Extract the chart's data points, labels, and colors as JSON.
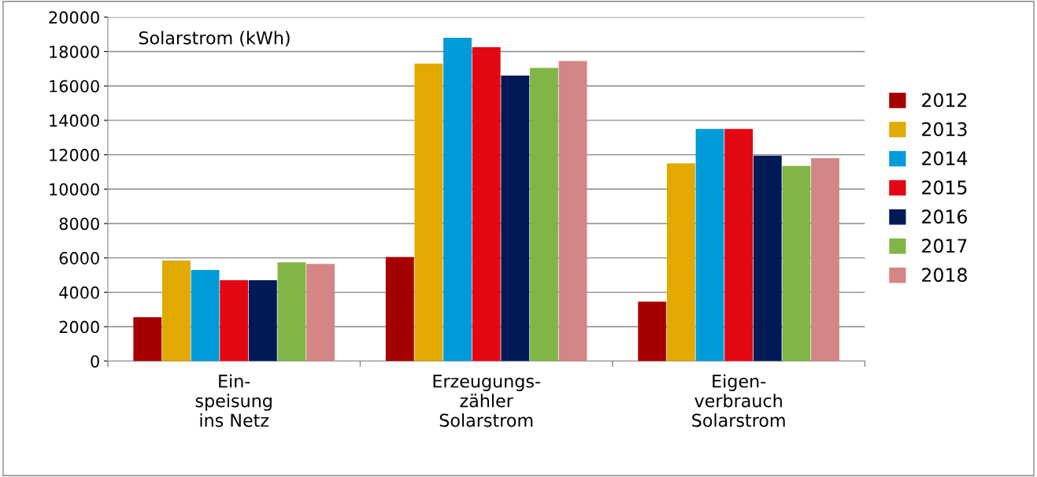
{
  "chart_data": {
    "type": "bar",
    "annotations": [
      "Solarstrom (kWh)"
    ],
    "categories": [
      "Ein-\nspeisung\nins Netz",
      "Erzeugungs-\nzähler\nSolarstrom",
      "Eigen-\nverbrauch\nSolarstrom"
    ],
    "series": [
      {
        "name": "2012",
        "color": "#a50000",
        "values": [
          2550,
          6050,
          3450
        ]
      },
      {
        "name": "2013",
        "color": "#e2a900",
        "values": [
          5850,
          17300,
          11500
        ]
      },
      {
        "name": "2014",
        "color": "#009bd8",
        "values": [
          5300,
          18800,
          13500
        ]
      },
      {
        "name": "2015",
        "color": "#e30613",
        "values": [
          4700,
          18250,
          13500
        ]
      },
      {
        "name": "2016",
        "color": "#001a57",
        "values": [
          4700,
          16600,
          11950
        ]
      },
      {
        "name": "2017",
        "color": "#82b548",
        "values": [
          5750,
          17050,
          11350
        ]
      },
      {
        "name": "2018",
        "color": "#d48585",
        "values": [
          5650,
          17450,
          11800
        ]
      }
    ],
    "ylim": [
      0,
      20000
    ],
    "yticks": [
      0,
      2000,
      4000,
      6000,
      8000,
      10000,
      12000,
      14000,
      16000,
      18000,
      20000
    ],
    "grid": "y",
    "legend": "right"
  }
}
